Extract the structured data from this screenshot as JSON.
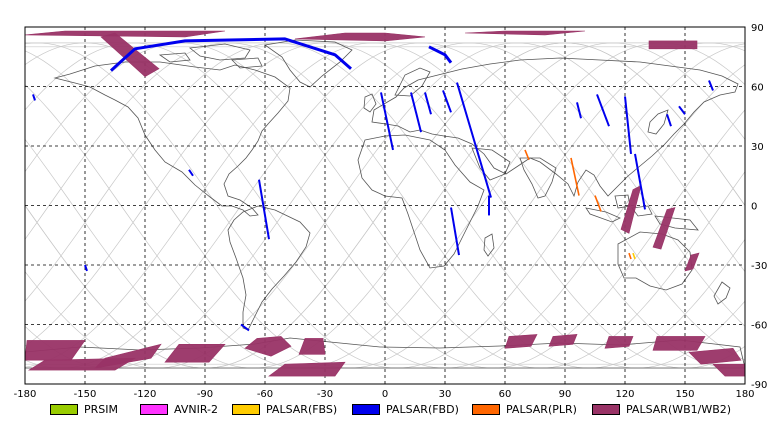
{
  "map": {
    "lon_ticks": [
      "-180",
      "-150",
      "-120",
      "-90",
      "-60",
      "-30",
      "0",
      "30",
      "60",
      "90",
      "120",
      "150",
      "180"
    ],
    "lat_ticks": [
      "90",
      "60",
      "30",
      "0",
      "-30",
      "-60",
      "-90"
    ],
    "lon_range": [
      -180,
      180
    ],
    "lat_range": [
      -90,
      90
    ],
    "grid": "dashed",
    "colors": {
      "background": "#ffffff",
      "coastline": "#555555",
      "orbit_track": "#c8c8c8",
      "grid": "#000000"
    }
  },
  "legend": [
    {
      "label": "PRSIM",
      "color": "#99cc00"
    },
    {
      "label": "AVNIR-2",
      "color": "#ff33ff"
    },
    {
      "label": "PALSAR(FBS)",
      "color": "#ffcc00"
    },
    {
      "label": "PALSAR(FBD)",
      "color": "#0000ee"
    },
    {
      "label": "PALSAR(PLR)",
      "color": "#ff6600"
    },
    {
      "label": "PALSAR(WB1/WB2)",
      "color": "#993366"
    }
  ],
  "observations": {
    "fbd_swaths": [
      {
        "from": [
          -176,
          56
        ],
        "to": [
          -175,
          53
        ]
      },
      {
        "from": [
          -2,
          57
        ],
        "to": [
          4,
          28
        ]
      },
      {
        "from": [
          13,
          57
        ],
        "to": [
          18,
          37
        ]
      },
      {
        "from": [
          20,
          57
        ],
        "to": [
          23,
          46
        ]
      },
      {
        "from": [
          29,
          58
        ],
        "to": [
          33,
          47
        ]
      },
      {
        "from": [
          36,
          62
        ],
        "to": [
          53,
          4
        ]
      },
      {
        "from": [
          52,
          5
        ],
        "to": [
          52,
          -5
        ]
      },
      {
        "from": [
          33,
          -1
        ],
        "to": [
          37,
          -25
        ]
      },
      {
        "from": [
          -63,
          13
        ],
        "to": [
          -58,
          -17
        ]
      },
      {
        "from": [
          -72,
          -60
        ],
        "to": [
          -68,
          -63
        ]
      },
      {
        "from": [
          -150,
          -30
        ],
        "to": [
          -149,
          -33
        ]
      },
      {
        "from": [
          96,
          52
        ],
        "to": [
          98,
          44
        ]
      },
      {
        "from": [
          106,
          56
        ],
        "to": [
          112,
          40
        ]
      },
      {
        "from": [
          120,
          55
        ],
        "to": [
          123,
          26
        ]
      },
      {
        "from": [
          125,
          26
        ],
        "to": [
          130,
          -2
        ]
      },
      {
        "from": [
          141,
          46
        ],
        "to": [
          143,
          40
        ]
      },
      {
        "from": [
          147,
          50
        ],
        "to": [
          150,
          46
        ]
      },
      {
        "from": [
          162,
          63
        ],
        "to": [
          164,
          58
        ]
      },
      {
        "from": [
          -98,
          18
        ],
        "to": [
          -96,
          15
        ]
      }
    ],
    "fbd_arcs": [
      {
        "points": [
          [
            -137,
            68
          ],
          [
            -125,
            79
          ],
          [
            -100,
            83
          ],
          [
            -50,
            84
          ],
          [
            -25,
            76
          ],
          [
            -17,
            69
          ]
        ]
      },
      {
        "points": [
          [
            22,
            80
          ],
          [
            30,
            76
          ],
          [
            33,
            72
          ]
        ]
      }
    ],
    "plr_swaths": [
      {
        "from": [
          70,
          28
        ],
        "to": [
          72,
          23
        ]
      },
      {
        "from": [
          93,
          24
        ],
        "to": [
          97,
          5
        ]
      },
      {
        "from": [
          105,
          5
        ],
        "to": [
          108,
          -3
        ]
      },
      {
        "from": [
          122,
          -24
        ],
        "to": [
          123,
          -27
        ]
      }
    ],
    "fbs_swaths": [
      {
        "from": [
          124,
          -24
        ],
        "to": [
          125,
          -27
        ]
      }
    ],
    "wb_swaths": [
      {
        "polygon": [
          [
            -142,
            85
          ],
          [
            -135,
            87
          ],
          [
            -113,
            69
          ],
          [
            -120,
            65
          ]
        ]
      },
      {
        "polygon": [
          [
            -180,
            86
          ],
          [
            -160,
            88
          ],
          [
            -80,
            88
          ],
          [
            -100,
            85
          ]
        ]
      },
      {
        "polygon": [
          [
            -45,
            84
          ],
          [
            -20,
            87
          ],
          [
            0,
            87
          ],
          [
            20,
            85
          ],
          [
            0,
            83
          ]
        ]
      },
      {
        "polygon": [
          [
            40,
            87
          ],
          [
            60,
            88
          ],
          [
            100,
            88
          ],
          [
            80,
            86
          ]
        ]
      },
      {
        "polygon": [
          [
            132,
            83
          ],
          [
            156,
            83
          ],
          [
            156,
            79
          ],
          [
            132,
            79
          ]
        ]
      },
      {
        "polygon": [
          [
            124,
            8
          ],
          [
            128,
            10
          ],
          [
            122,
            -14
          ],
          [
            118,
            -12
          ]
        ]
      },
      {
        "polygon": [
          [
            141,
            -2
          ],
          [
            145,
            -1
          ],
          [
            138,
            -22
          ],
          [
            134,
            -21
          ]
        ]
      },
      {
        "polygon": [
          [
            153,
            -25
          ],
          [
            157,
            -24
          ],
          [
            154,
            -32
          ],
          [
            150,
            -33
          ]
        ]
      },
      {
        "polygon": [
          [
            -179,
            -68
          ],
          [
            -150,
            -68
          ],
          [
            -157,
            -78
          ],
          [
            -180,
            -78
          ]
        ]
      },
      {
        "polygon": [
          [
            -170,
            -78
          ],
          [
            -125,
            -77
          ],
          [
            -135,
            -83
          ],
          [
            -178,
            -83
          ]
        ]
      },
      {
        "polygon": [
          [
            -140,
            -77
          ],
          [
            -112,
            -70
          ],
          [
            -117,
            -77
          ],
          [
            -145,
            -82
          ]
        ]
      },
      {
        "polygon": [
          [
            -103,
            -70
          ],
          [
            -80,
            -70
          ],
          [
            -88,
            -79
          ],
          [
            -110,
            -79
          ]
        ]
      },
      {
        "polygon": [
          [
            -64,
            -67
          ],
          [
            -52,
            -66
          ],
          [
            -47,
            -71
          ],
          [
            -57,
            -76
          ],
          [
            -70,
            -72
          ]
        ]
      },
      {
        "polygon": [
          [
            -40,
            -67
          ],
          [
            -31,
            -67
          ],
          [
            -30,
            -75
          ],
          [
            -43,
            -75
          ]
        ]
      },
      {
        "polygon": [
          [
            -50,
            -80
          ],
          [
            -20,
            -79
          ],
          [
            -25,
            -86
          ],
          [
            -58,
            -86
          ]
        ]
      },
      {
        "polygon": [
          [
            62,
            -66
          ],
          [
            76,
            -65
          ],
          [
            73,
            -71
          ],
          [
            60,
            -72
          ]
        ]
      },
      {
        "polygon": [
          [
            84,
            -66
          ],
          [
            96,
            -65
          ],
          [
            94,
            -70
          ],
          [
            82,
            -71
          ]
        ]
      },
      {
        "polygon": [
          [
            112,
            -66
          ],
          [
            124,
            -66
          ],
          [
            122,
            -71
          ],
          [
            110,
            -72
          ]
        ]
      },
      {
        "polygon": [
          [
            136,
            -66
          ],
          [
            160,
            -66
          ],
          [
            156,
            -73
          ],
          [
            134,
            -73
          ]
        ]
      },
      {
        "polygon": [
          [
            152,
            -74
          ],
          [
            174,
            -72
          ],
          [
            178,
            -78
          ],
          [
            158,
            -80
          ]
        ]
      },
      {
        "polygon": [
          [
            164,
            -80
          ],
          [
            180,
            -80
          ],
          [
            180,
            -86
          ],
          [
            170,
            -86
          ]
        ]
      }
    ]
  }
}
